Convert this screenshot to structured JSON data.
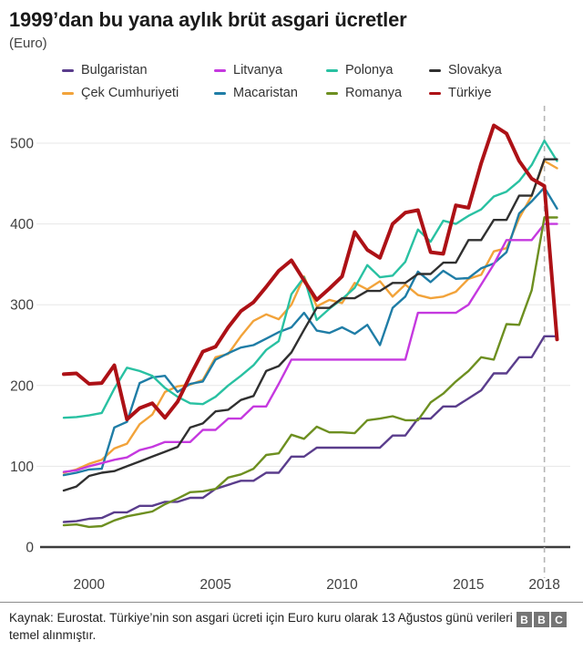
{
  "page": {
    "title": "1999’dan bu yana aylık brüt asgari ücretler",
    "subtitle": "(Euro)"
  },
  "legend": {
    "order": [
      "Bulgaristan",
      "Litvanya",
      "Polonya",
      "Slovakya",
      "Çek Cumhuriyeti",
      "Macaristan",
      "Romanya",
      "Türkiye"
    ]
  },
  "chart_data": {
    "type": "line",
    "title": "1999’dan bu yana aylık brüt asgari ücretler",
    "ylabel": "Euro",
    "xlabel": "",
    "grid": true,
    "legend_position": "top",
    "xlim": [
      1999,
      2018.5
    ],
    "ylim": [
      0,
      540
    ],
    "x_ticks": [
      2000,
      2005,
      2010,
      2015,
      2018
    ],
    "y_ticks": [
      0,
      100,
      200,
      300,
      400,
      500
    ],
    "annotation": {
      "dashed_vline_x": 2018
    },
    "x": [
      1999,
      1999.5,
      2000,
      2000.5,
      2001,
      2001.5,
      2002,
      2002.5,
      2003,
      2003.5,
      2004,
      2004.5,
      2005,
      2005.5,
      2006,
      2006.5,
      2007,
      2007.5,
      2008,
      2008.5,
      2009,
      2009.5,
      2010,
      2010.5,
      2011,
      2011.5,
      2012,
      2012.5,
      2013,
      2013.5,
      2014,
      2014.5,
      2015,
      2015.5,
      2016,
      2016.5,
      2017,
      2017.5,
      2018,
      2018.5
    ],
    "series": [
      {
        "id": "cek",
        "name": "Çek Cumhuriyeti",
        "color": "#f2a33a",
        "thick": false,
        "values": [
          92,
          96,
          103,
          108,
          122,
          128,
          152,
          164,
          192,
          199,
          201,
          207,
          235,
          239,
          261,
          280,
          288,
          282,
          300,
          335,
          298,
          306,
          302,
          327,
          319,
          329,
          310,
          325,
          312,
          308,
          310,
          316,
          332,
          337,
          366,
          370,
          407,
          435,
          478,
          469
        ]
      },
      {
        "id": "macaristan",
        "name": "Macaristan",
        "color": "#1f7da6",
        "thick": false,
        "values": [
          89,
          92,
          96,
          97,
          148,
          155,
          203,
          210,
          212,
          192,
          202,
          205,
          232,
          240,
          247,
          250,
          258,
          266,
          272,
          290,
          268,
          265,
          272,
          264,
          275,
          250,
          296,
          310,
          341,
          328,
          342,
          332,
          333,
          345,
          351,
          365,
          413,
          428,
          445,
          419
        ]
      },
      {
        "id": "litvanya",
        "name": "Litvanya",
        "color": "#c539df",
        "thick": false,
        "values": [
          93,
          95,
          100,
          104,
          108,
          111,
          120,
          124,
          130,
          130,
          130,
          145,
          145,
          159,
          159,
          174,
          174,
          202,
          232,
          232,
          232,
          232,
          232,
          232,
          232,
          232,
          232,
          232,
          290,
          290,
          290,
          290,
          300,
          325,
          350,
          380,
          380,
          380,
          400,
          400
        ]
      },
      {
        "id": "bulgaristan",
        "name": "Bulgaristan",
        "color": "#5a3d8c",
        "thick": false,
        "values": [
          31,
          32,
          35,
          36,
          43,
          43,
          51,
          51,
          56,
          56,
          61,
          61,
          72,
          77,
          82,
          82,
          92,
          92,
          112,
          112,
          123,
          123,
          123,
          123,
          123,
          123,
          138,
          138,
          159,
          159,
          174,
          174,
          184,
          194,
          215,
          215,
          235,
          235,
          261,
          261
        ]
      },
      {
        "id": "romanya",
        "name": "Romanya",
        "color": "#6d8f20",
        "thick": false,
        "values": [
          27,
          28,
          25,
          26,
          33,
          38,
          41,
          44,
          53,
          60,
          68,
          69,
          72,
          86,
          90,
          97,
          114,
          116,
          139,
          134,
          149,
          142,
          142,
          141,
          157,
          159,
          162,
          157,
          157,
          179,
          190,
          205,
          218,
          235,
          232,
          276,
          275,
          318,
          408,
          408
        ]
      },
      {
        "id": "polonya",
        "name": "Polonya",
        "color": "#29c1a2",
        "thick": false,
        "values": [
          160,
          161,
          163,
          166,
          196,
          222,
          218,
          212,
          197,
          186,
          178,
          177,
          186,
          200,
          212,
          225,
          244,
          255,
          313,
          334,
          281,
          295,
          307,
          321,
          349,
          334,
          336,
          353,
          393,
          378,
          404,
          400,
          410,
          418,
          434,
          440,
          453,
          473,
          503,
          478
        ]
      },
      {
        "id": "slovakya",
        "name": "Slovakya",
        "color": "#303030",
        "thick": false,
        "values": [
          70,
          75,
          88,
          92,
          94,
          100,
          106,
          112,
          118,
          124,
          148,
          153,
          168,
          170,
          182,
          187,
          218,
          224,
          241,
          269,
          296,
          296,
          308,
          308,
          317,
          317,
          327,
          327,
          338,
          338,
          352,
          352,
          380,
          380,
          405,
          405,
          435,
          435,
          480,
          480
        ]
      },
      {
        "id": "turkiye",
        "name": "Türkiye",
        "color": "#ad1116",
        "thick": true,
        "values": [
          214,
          215,
          202,
          203,
          225,
          158,
          172,
          178,
          160,
          180,
          212,
          242,
          248,
          272,
          292,
          303,
          322,
          342,
          355,
          330,
          306,
          320,
          335,
          390,
          368,
          358,
          400,
          414,
          417,
          365,
          363,
          423,
          420,
          475,
          522,
          512,
          478,
          456,
          447,
          257
        ]
      }
    ]
  },
  "footer": {
    "source_text": "Kaynak: Eurostat. Türkiye’nin son asgari ücreti için Euro kuru olarak 13 Ağustos günü verileri temel alınmıştır.",
    "logo_letters": [
      "B",
      "B",
      "C"
    ]
  },
  "colors": {
    "axis": "#3d3d3d",
    "grid": "#e7e7e7",
    "dashed_line": "#b5b5b5",
    "tick_text": "#404040"
  }
}
